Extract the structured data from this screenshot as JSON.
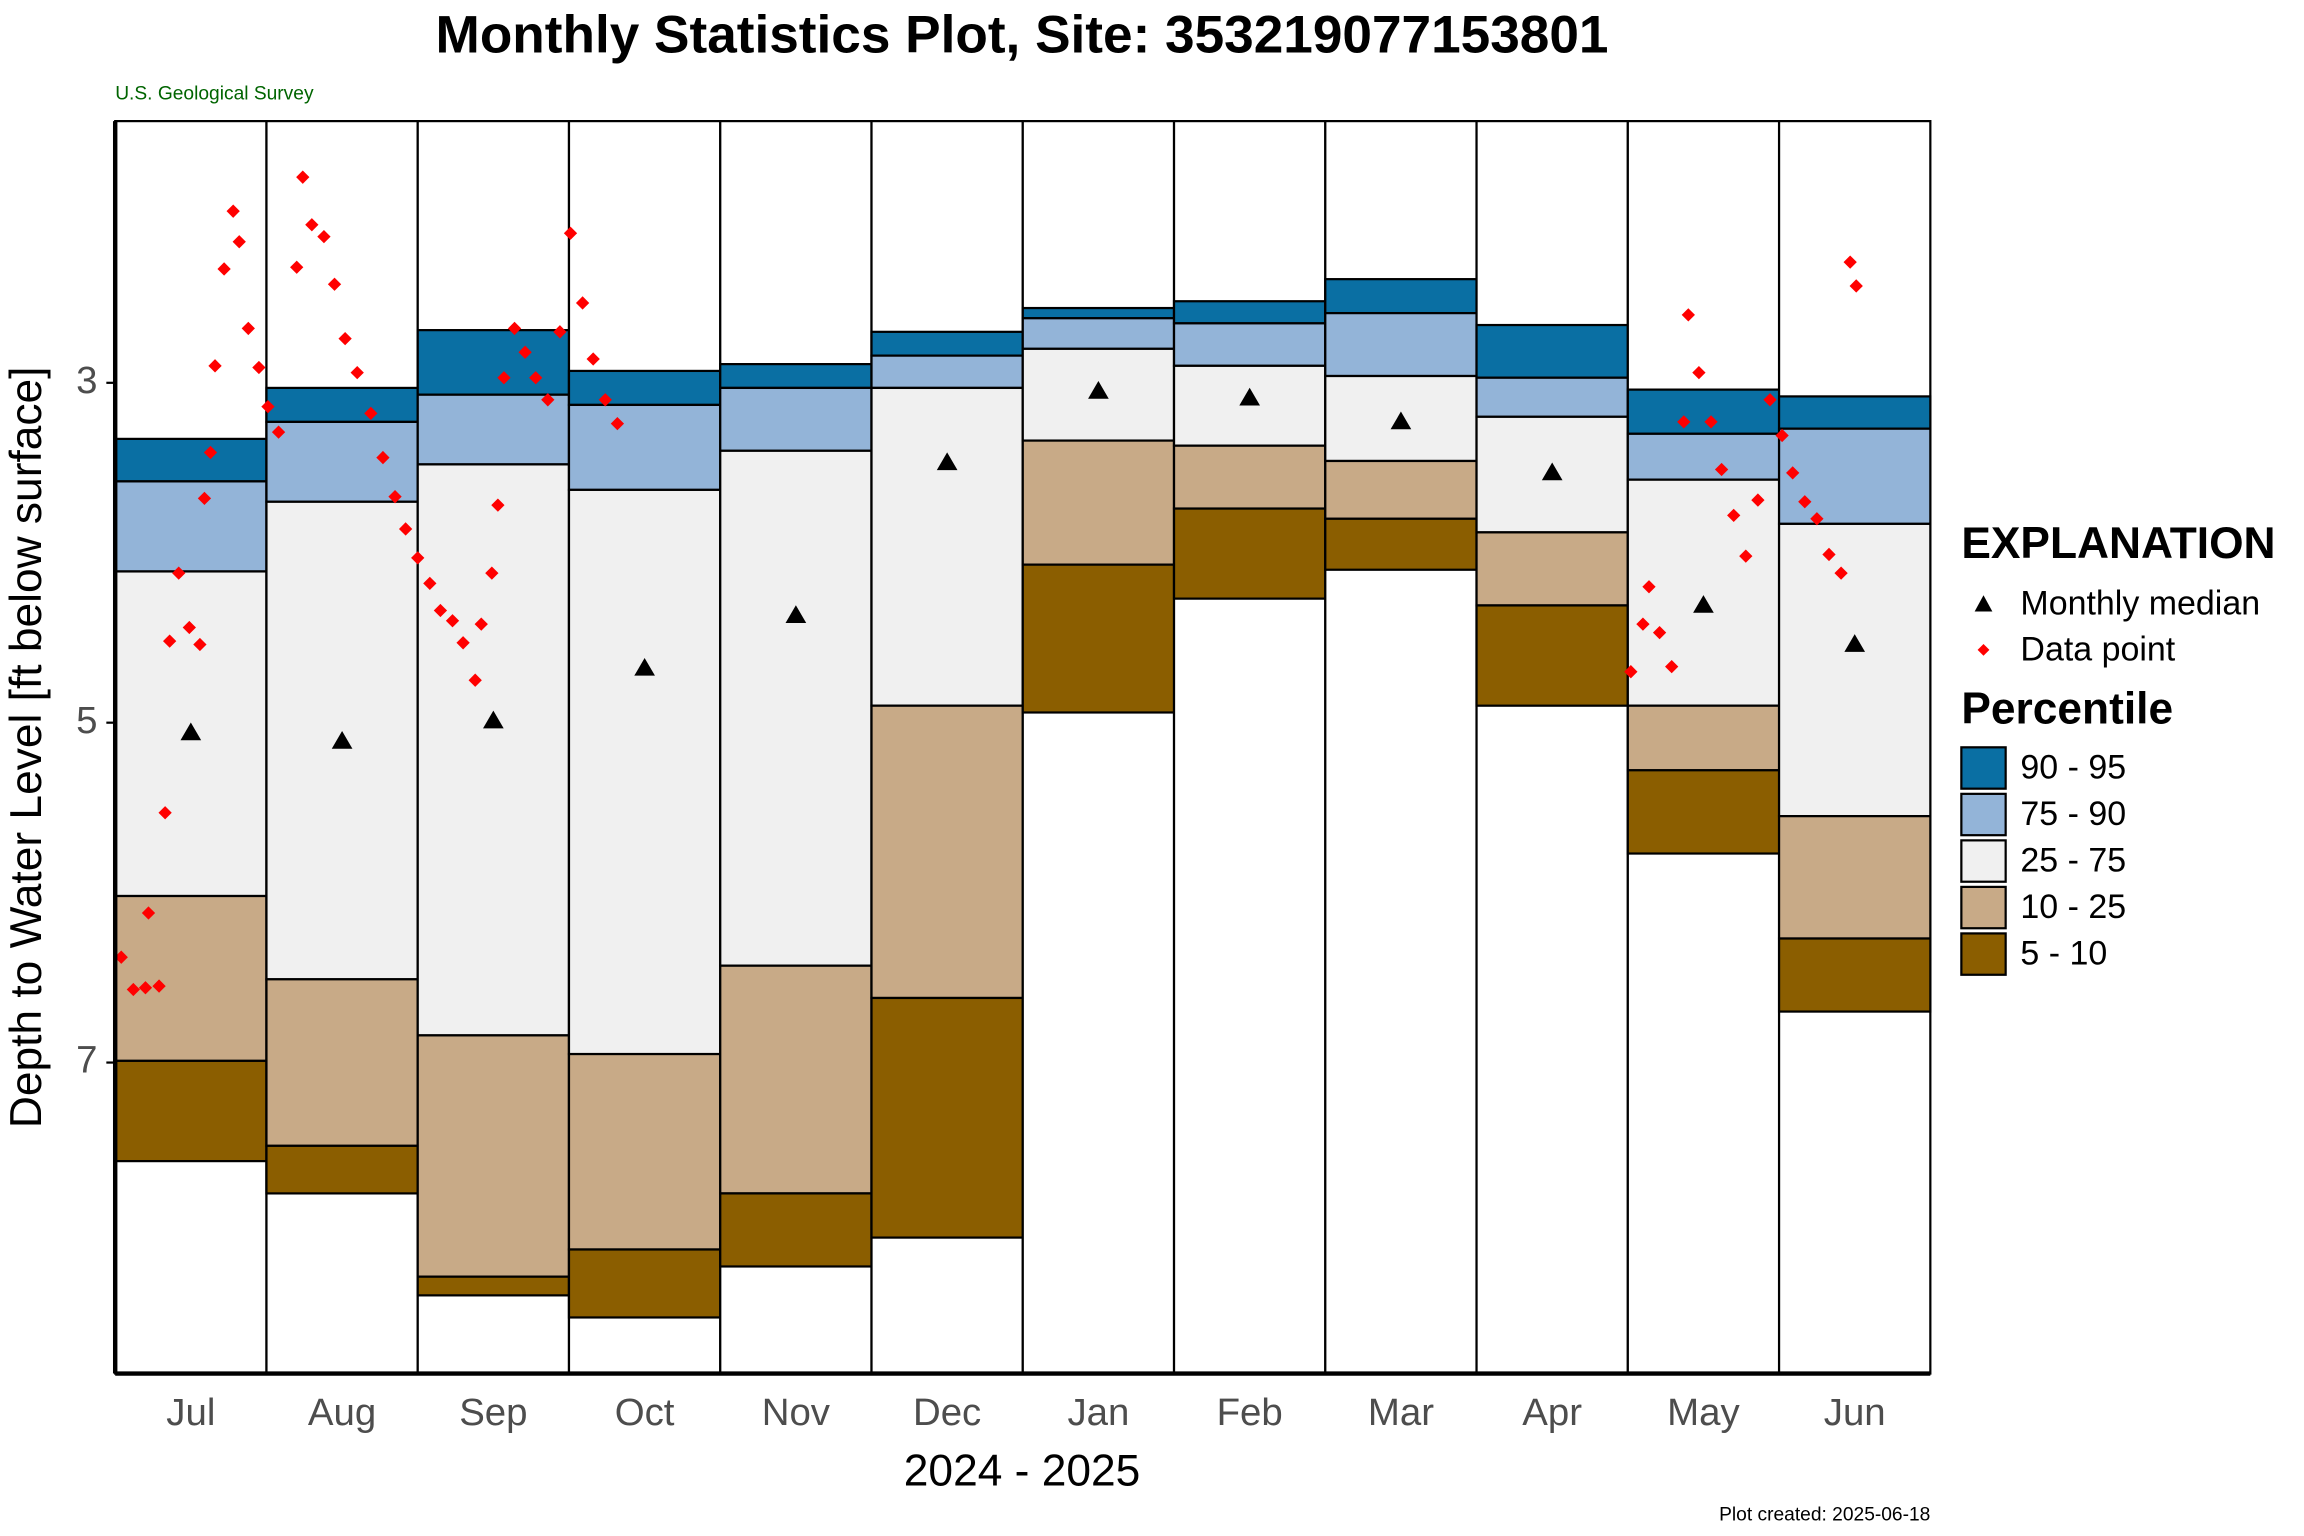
{
  "chart_data": {
    "type": "percentile_bands",
    "title": "Monthly Statistics Plot, Site: 353219077153801",
    "subtitle": "U.S. Geological Survey",
    "xlabel": "2024 - 2025",
    "ylabel": "Depth to Water Level [ft below surface]",
    "footnote": "Plot created: 2025-06-18",
    "legend_title": "EXPLANATION",
    "median_name": "Monthly median",
    "points_name": "Data point",
    "percentile_title": "Percentile",
    "categories": [
      "Jul",
      "Aug",
      "Sep",
      "Oct",
      "Nov",
      "Dec",
      "Jan",
      "Feb",
      "Mar",
      "Apr",
      "May",
      "Jun"
    ],
    "ylim": [
      1.46,
      8.83
    ],
    "y_inverted": true,
    "yticks": [
      3,
      5,
      7
    ],
    "series": [
      {
        "name": "90 - 95",
        "color": "#0a6fa3",
        "values": [
          3.33,
          3.03,
          2.69,
          2.93,
          2.89,
          2.7,
          2.56,
          2.52,
          2.39,
          2.66,
          3.04,
          3.08
        ]
      },
      {
        "name": "75 - 90",
        "color": "#93b4d8",
        "values": [
          3.58,
          3.23,
          3.07,
          3.13,
          3.03,
          2.84,
          2.62,
          2.65,
          2.59,
          2.97,
          3.3,
          3.27
        ]
      },
      {
        "name": "25 - 75",
        "color": "#f0f0f0",
        "values": [
          4.11,
          3.7,
          3.48,
          3.63,
          3.4,
          3.03,
          2.8,
          2.9,
          2.96,
          3.2,
          3.57,
          3.83
        ]
      },
      {
        "name": "10 - 25",
        "color": "#c8aa87",
        "values": [
          6.02,
          6.51,
          6.84,
          6.95,
          6.43,
          4.9,
          3.34,
          3.37,
          3.46,
          3.88,
          4.9,
          5.55
        ]
      },
      {
        "name": "5 - 10",
        "color": "#8b5e00",
        "values": [
          6.99,
          7.49,
          8.26,
          8.1,
          7.77,
          6.62,
          4.07,
          3.74,
          3.8,
          4.31,
          5.28,
          6.27
        ]
      }
    ],
    "floor": [
      7.58,
      7.77,
      8.37,
      8.5,
      8.2,
      8.03,
      4.94,
      4.27,
      4.1,
      4.9,
      5.77,
      6.7
    ],
    "median": [
      5.06,
      5.11,
      4.99,
      4.68,
      4.37,
      3.47,
      3.05,
      3.09,
      3.23,
      3.53,
      4.31,
      4.54
    ],
    "median_color": "#000000",
    "points_color": "#ff0000",
    "points_xlim": [
      0,
      12
    ],
    "points": {
      "x": [
        0.04,
        0.12,
        0.2,
        0.22,
        0.29,
        0.33,
        0.36,
        0.42,
        0.49,
        0.56,
        0.59,
        0.63,
        0.66,
        0.72,
        0.78,
        0.82,
        0.88,
        0.95,
        1.01,
        1.08,
        1.2,
        1.24,
        1.3,
        1.38,
        1.45,
        1.52,
        1.6,
        1.69,
        1.77,
        1.85,
        1.92,
        2.0,
        2.08,
        2.15,
        2.23,
        2.3,
        2.38,
        2.42,
        2.49,
        2.53,
        2.57,
        2.64,
        2.71,
        2.78,
        2.86,
        2.94,
        3.01,
        3.09,
        3.16,
        3.24,
        3.32,
        10.02,
        10.1,
        10.14,
        10.21,
        10.29,
        10.37,
        10.4,
        10.47,
        10.55,
        10.62,
        10.7,
        10.78,
        10.86,
        10.94,
        11.02,
        11.09,
        11.17,
        11.25,
        11.33,
        11.41,
        11.47,
        11.51
      ],
      "y": [
        6.38,
        6.57,
        6.56,
        6.12,
        6.55,
        5.53,
        4.52,
        4.12,
        4.44,
        4.54,
        3.68,
        3.41,
        2.9,
        2.33,
        1.99,
        2.17,
        2.68,
        2.91,
        3.14,
        3.29,
        2.32,
        1.79,
        2.07,
        2.14,
        2.42,
        2.74,
        2.94,
        3.18,
        3.44,
        3.67,
        3.86,
        4.03,
        4.18,
        4.34,
        4.4,
        4.53,
        4.75,
        4.42,
        4.12,
        3.72,
        2.97,
        2.68,
        2.82,
        2.97,
        3.1,
        2.7,
        2.12,
        2.53,
        2.86,
        3.1,
        3.24,
        4.7,
        4.42,
        4.2,
        4.47,
        4.67,
        3.23,
        2.6,
        2.94,
        3.23,
        3.51,
        3.78,
        4.02,
        3.69,
        3.1,
        3.31,
        3.53,
        3.7,
        3.8,
        4.01,
        4.12,
        2.29,
        2.43
      ]
    }
  }
}
